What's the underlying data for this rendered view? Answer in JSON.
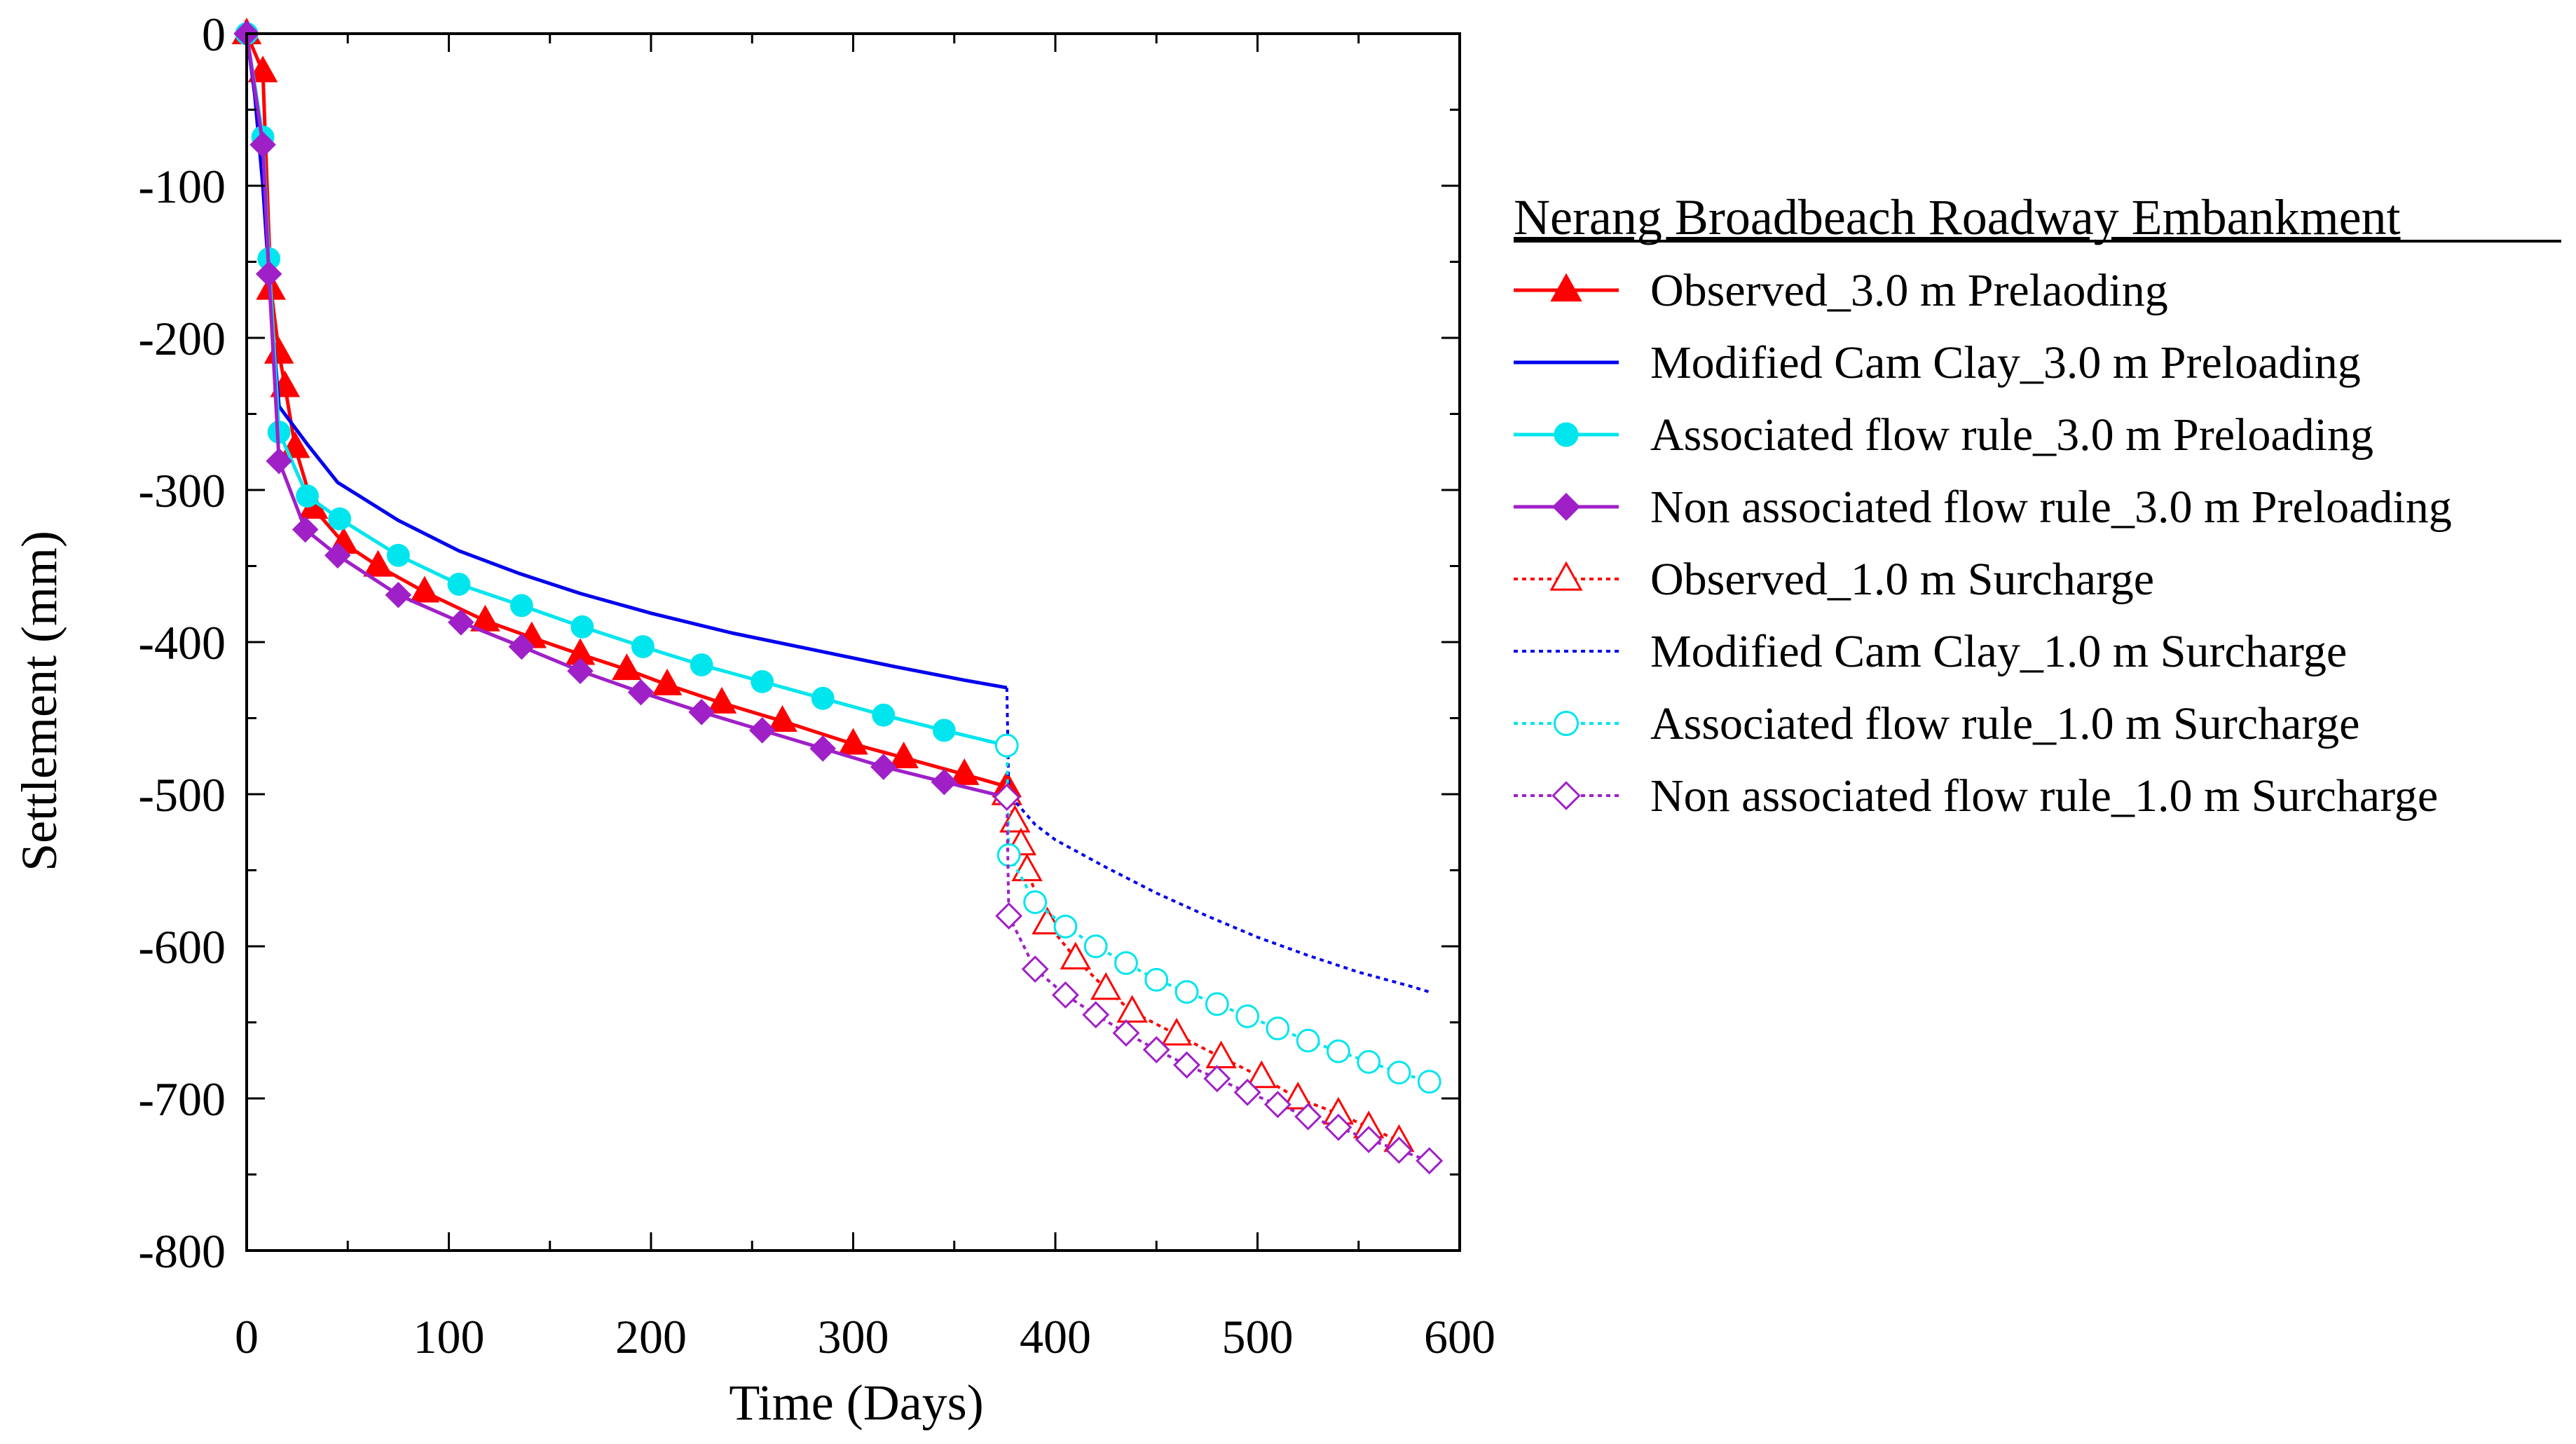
{
  "chart_data": {
    "type": "line",
    "title": "",
    "xlabel": "Time (Days)",
    "ylabel": "Settlement (mm)",
    "xlim": [
      0,
      600
    ],
    "ylim": [
      -800,
      0
    ],
    "xticks": [
      "0",
      "100",
      "200",
      "300",
      "400",
      "500",
      "600"
    ],
    "yticks": [
      "0",
      "-100",
      "-200",
      "-300",
      "-400",
      "-500",
      "-600",
      "-700",
      "-800"
    ],
    "grid": false,
    "legend_title": "Nerang Broadbeach Roadway Embankment",
    "legend_position": "right",
    "series": [
      {
        "name": "Observed_3.0 m Prelaoding",
        "color": "#ff0000",
        "dash": "solid",
        "marker": "triangle",
        "filled": true,
        "x": [
          0,
          8,
          12,
          16,
          19,
          24,
          33,
          48,
          65,
          88,
          118,
          141,
          165,
          188,
          208,
          235,
          265,
          300,
          325,
          355,
          376
        ],
        "y": [
          0,
          -25,
          -168,
          -210,
          -232,
          -272,
          -312,
          -335,
          -350,
          -367,
          -386,
          -397,
          -408,
          -418,
          -428,
          -440,
          -452,
          -467,
          -476,
          -487,
          -495
        ]
      },
      {
        "name": "Modified Cam Clay_3.0 m Preloading",
        "color": "#0000ee",
        "dash": "solid",
        "marker": "none",
        "filled": false,
        "x": [
          0,
          4,
          8,
          12,
          16,
          30,
          45,
          75,
          105,
          135,
          165,
          200,
          240,
          280,
          320,
          355,
          376
        ],
        "y": [
          0,
          -40,
          -100,
          -180,
          -245,
          -270,
          -295,
          -320,
          -340,
          -355,
          -368,
          -381,
          -394,
          -405,
          -416,
          -425,
          -430
        ]
      },
      {
        "name": "Associated flow rule_3.0 m Preloading",
        "color": "#00e5ee",
        "dash": "solid",
        "marker": "circle",
        "filled": true,
        "x": [
          0,
          8,
          11,
          16,
          30,
          46,
          75,
          105,
          136,
          166,
          196,
          225,
          255,
          285,
          315,
          345,
          376
        ],
        "y": [
          0,
          -68,
          -148,
          -262,
          -304,
          -319,
          -343,
          -362,
          -376,
          -390,
          -403,
          -415,
          -426,
          -437,
          -448,
          -458,
          -468
        ]
      },
      {
        "name": "Non associated flow rule_3.0 m Preloading",
        "color": "#a020c8",
        "dash": "solid",
        "marker": "diamond",
        "filled": true,
        "x": [
          0,
          8,
          11,
          16,
          29,
          45,
          75,
          106,
          136,
          165,
          195,
          225,
          255,
          285,
          315,
          345,
          376
        ],
        "y": [
          0,
          -73,
          -158,
          -281,
          -326,
          -343,
          -369,
          -387,
          -403,
          -419,
          -433,
          -446,
          -458,
          -470,
          -482,
          -492,
          -502
        ]
      },
      {
        "name": "Observed_1.0 m Surcharge",
        "color": "#ff0000",
        "dash": "dotted",
        "marker": "triangle",
        "filled": false,
        "x": [
          376,
          380,
          383,
          386,
          396,
          410,
          425,
          438,
          460,
          482,
          502,
          520,
          540,
          555,
          570
        ],
        "y": [
          -500,
          -518,
          -533,
          -550,
          -585,
          -608,
          -628,
          -643,
          -658,
          -673,
          -686,
          -700,
          -710,
          -719,
          -728
        ]
      },
      {
        "name": "Modified Cam Clay_1.0 m Surcharge",
        "color": "#0000ee",
        "dash": "dotted",
        "marker": "none",
        "filled": false,
        "x": [
          376,
          377,
          390,
          400,
          425,
          450,
          475,
          500,
          525,
          550,
          575,
          585
        ],
        "y": [
          -430,
          -500,
          -520,
          -530,
          -548,
          -565,
          -580,
          -594,
          -606,
          -617,
          -626,
          -630
        ]
      },
      {
        "name": "Associated flow rule_1.0 m Surcharge",
        "color": "#00e5ee",
        "dash": "dotted",
        "marker": "circle",
        "filled": false,
        "x": [
          376,
          377,
          390,
          405,
          420,
          435,
          450,
          465,
          480,
          495,
          510,
          525,
          540,
          555,
          570,
          585
        ],
        "y": [
          -468,
          -540,
          -571,
          -587,
          -600,
          -611,
          -622,
          -630,
          -638,
          -646,
          -654,
          -662,
          -669,
          -676,
          -683,
          -689
        ]
      },
      {
        "name": "Non associated flow rule_1.0 m Surcharge",
        "color": "#a020c8",
        "dash": "dotted",
        "marker": "diamond",
        "filled": false,
        "x": [
          376,
          377,
          390,
          405,
          420,
          435,
          450,
          465,
          480,
          495,
          510,
          525,
          540,
          555,
          570,
          585
        ],
        "y": [
          -502,
          -580,
          -615,
          -632,
          -645,
          -657,
          -668,
          -678,
          -687,
          -696,
          -704,
          -712,
          -719,
          -727,
          -734,
          -741
        ]
      }
    ]
  }
}
